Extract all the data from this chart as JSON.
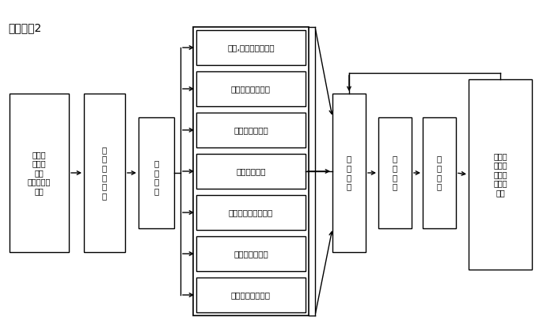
{
  "bg_color": "#ffffff",
  "header": "序参见图2",
  "box_start_text": "洞内超\n前地质\n预报\n超前水平钻\n探孔",
  "box_info_text": "信\n息\n采\n集\n收\n集",
  "box_expert_text": "\n专\n家\n评\n判",
  "judge_labels": [
    "涌水,涌泥可能性判释",
    "高地温可能性判释",
    "断层可能性判释",
    "高地应力判释",
    "软岩变形可能性判释",
    "岩爆可能性判释",
    "其他地质病害判释"
  ],
  "box_design_text": "设\n计\n单\n位",
  "box_dynamic_text": "动\n态\n设\n计",
  "box_implement_text": "实\n施\n施\n工",
  "box_review_text": "对预报\n成果进\n行工后\n确报与\n复核",
  "lw": 1.0,
  "fontsize_main": 7.5,
  "fontsize_judge": 7.5,
  "fontsize_header": 10,
  "line_color": "#000000",
  "box_edge_color": "#000000",
  "box_face_color": "#ffffff",
  "arrow_color": "#000000"
}
